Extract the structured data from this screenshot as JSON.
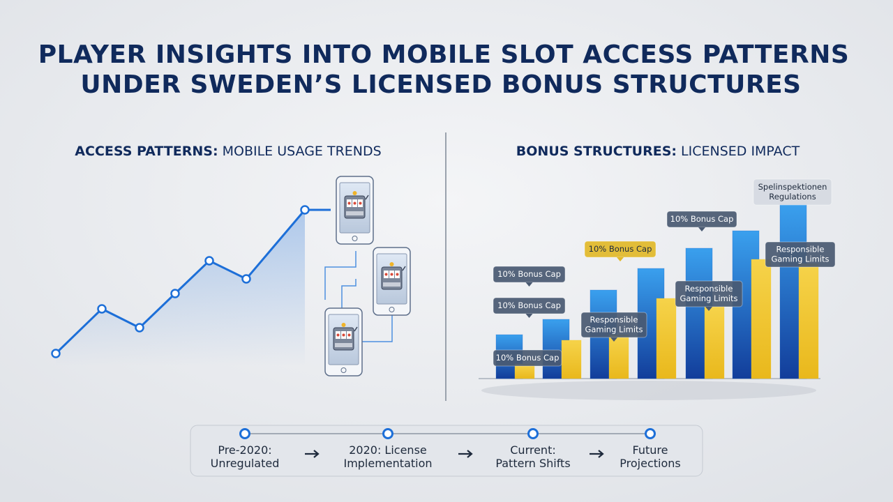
{
  "title_lines": [
    "PLAYER INSIGHTS INTO MOBILE SLOT ACCESS PATTERNS",
    "UNDER SWEDEN’S LICENSED BONUS STRUCTURES"
  ],
  "left_panel": {
    "heading_bold": "ACCESS PATTERNS:",
    "heading_rest": "MOBILE USAGE TRENDS",
    "line": {
      "color": "#1d6fd8",
      "values": [
        13,
        77,
        50,
        99,
        146,
        120,
        219
      ]
    }
  },
  "right_panel": {
    "heading_bold": "BONUS STRUCTURES:",
    "heading_rest": "LICENSED IMPACT",
    "series": [
      {
        "color": "#1f63c6",
        "values": [
          63,
          85,
          127,
          158,
          187,
          212,
          250
        ]
      },
      {
        "color": "#f0c62c",
        "values": [
          21,
          55,
          63,
          115,
          103,
          171,
          165
        ]
      }
    ],
    "callouts": [
      {
        "lines": [
          "10% Bonus Cap"
        ]
      },
      {
        "lines": [
          "10% Bonus Cap"
        ]
      },
      {
        "lines": [
          "10% Bonus Cap"
        ]
      },
      {
        "lines": [
          "Responsible",
          "Gaming Limits"
        ]
      },
      {
        "lines": [
          "10% Bonus Cap"
        ]
      },
      {
        "lines": [
          "Responsible",
          "Gaming Limits"
        ]
      },
      {
        "lines": [
          "10% Bonus Cap"
        ]
      },
      {
        "lines": [
          "Responsible",
          "Gaming Limits"
        ]
      },
      {
        "lines": [
          "Spelinspektionen",
          "Regulations"
        ]
      }
    ]
  },
  "timeline": [
    {
      "lines": [
        "Pre-2020:",
        "Unregulated"
      ]
    },
    {
      "lines": [
        "2020: License",
        "Implementation"
      ]
    },
    {
      "lines": [
        "Current:",
        "Pattern Shifts"
      ]
    },
    {
      "lines": [
        "Future",
        "Projections"
      ]
    }
  ]
}
